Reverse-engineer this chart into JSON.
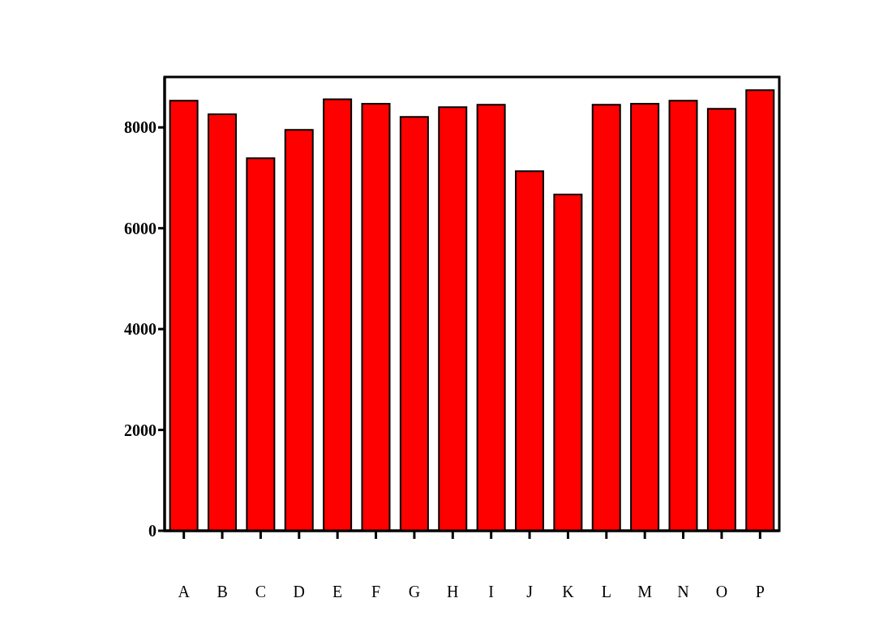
{
  "chart_data": {
    "type": "bar",
    "categories": [
      "A",
      "B",
      "C",
      "D",
      "E",
      "F",
      "G",
      "H",
      "I",
      "J",
      "K",
      "L",
      "M",
      "N",
      "O",
      "P"
    ],
    "values": [
      8530,
      8260,
      7390,
      7950,
      8560,
      8470,
      8210,
      8400,
      8450,
      7130,
      6670,
      8450,
      8470,
      8530,
      8370,
      8740
    ],
    "color": "#ff0000",
    "ylim": [
      0,
      9000
    ],
    "yticks": [
      0,
      2000,
      4000,
      6000,
      8000
    ],
    "grid": false
  }
}
